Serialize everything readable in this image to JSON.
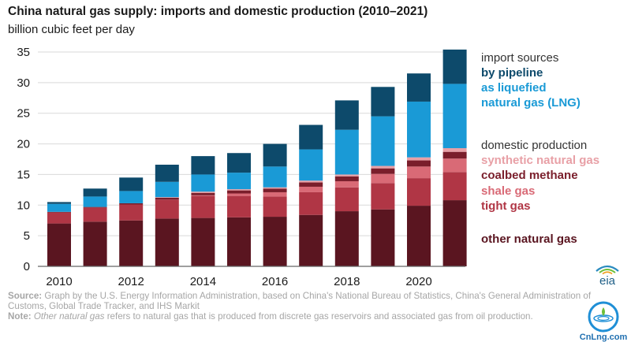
{
  "header": {
    "title": "China natural gas supply: imports and domestic production (2010–2021)",
    "subtitle": "billion cubic feet per day"
  },
  "legend": {
    "imports_heading": "import sources",
    "pipeline_label": "by pipeline",
    "lng_line1": "as liquefied",
    "lng_line2": "natural gas (LNG)",
    "domestic_heading": "domestic production",
    "synthetic_label": "synthetic natural gas",
    "coalbed_label": "coalbed methane",
    "shale_label": "shale gas",
    "tight_label": "tight gas",
    "other_label": "other natural gas"
  },
  "footer": {
    "source_label": "Source:",
    "source_text": "Graph by the U.S. Energy Information Administration, based on China's National Bureau of Statistics, China's General Administration of Customs, Global Trade Tracker, and IHS Markit",
    "note_label": "Note:",
    "note_italic": "Other natural gas",
    "note_text": "refers to natural gas that is produced from discrete gas reservoirs and associated gas from oil production."
  },
  "logo": {
    "text": "eia"
  },
  "watermark": {
    "text": "CnLng.com"
  },
  "colors": {
    "pipeline": "#0d4a6b",
    "lng": "#1a9ad6",
    "heading": "#333333",
    "synthetic": "#e8a0a6",
    "coalbed": "#7a1e2b",
    "shale": "#d96a76",
    "tight": "#b03645",
    "other": "#5a1520"
  },
  "chart_data": {
    "type": "bar",
    "stacked": true,
    "title": "China natural gas supply: imports and domestic production (2010–2021)",
    "ylabel": "billion cubic feet per day",
    "ylim": [
      0,
      35
    ],
    "yticks": [
      0,
      5,
      10,
      15,
      20,
      25,
      30,
      35
    ],
    "x": [
      2010,
      2011,
      2012,
      2013,
      2014,
      2015,
      2016,
      2017,
      2018,
      2019,
      2020,
      2021
    ],
    "xtick_labels": [
      "2010",
      "2012",
      "2014",
      "2016",
      "2018",
      "2020"
    ],
    "grid": "horizontal",
    "legend_position": "right",
    "series": [
      {
        "name": "other natural gas",
        "key": "other",
        "values": [
          7.0,
          7.3,
          7.5,
          7.8,
          7.9,
          8.0,
          8.1,
          8.4,
          9.0,
          9.3,
          9.9,
          10.8
        ]
      },
      {
        "name": "tight gas",
        "key": "tight",
        "values": [
          1.8,
          2.3,
          2.6,
          3.1,
          3.6,
          3.5,
          3.3,
          3.7,
          3.9,
          4.3,
          4.5,
          4.6
        ]
      },
      {
        "name": "shale gas",
        "key": "shale",
        "values": [
          0.0,
          0.0,
          0.0,
          0.0,
          0.1,
          0.4,
          0.7,
          0.9,
          1.0,
          1.5,
          1.9,
          2.2
        ]
      },
      {
        "name": "coalbed methane",
        "key": "coalbed",
        "values": [
          0.1,
          0.1,
          0.2,
          0.3,
          0.4,
          0.5,
          0.6,
          0.7,
          0.8,
          0.9,
          1.0,
          1.1
        ]
      },
      {
        "name": "synthetic natural gas",
        "key": "synthetic",
        "values": [
          0.0,
          0.0,
          0.0,
          0.1,
          0.2,
          0.2,
          0.2,
          0.3,
          0.3,
          0.4,
          0.5,
          0.6
        ]
      },
      {
        "name": "as liquefied natural gas (LNG)",
        "key": "lng",
        "values": [
          1.3,
          1.7,
          2.0,
          2.5,
          2.8,
          2.7,
          3.4,
          5.1,
          7.3,
          8.1,
          9.1,
          10.5
        ]
      },
      {
        "name": "by pipeline",
        "key": "pipeline",
        "values": [
          0.3,
          1.3,
          2.2,
          2.8,
          3.0,
          3.2,
          3.7,
          4.0,
          4.8,
          4.8,
          4.6,
          5.6
        ]
      }
    ]
  }
}
